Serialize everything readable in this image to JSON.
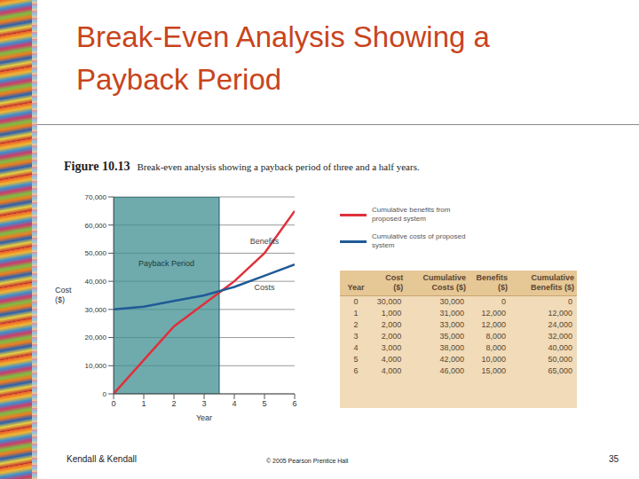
{
  "slide": {
    "title": "Break-Even Analysis Showing a Payback Period",
    "footer_left": "Kendall & Kendall",
    "footer_center": "© 2005 Pearson Prentice Hall",
    "page": "35"
  },
  "figure": {
    "label": "Figure 10.13",
    "caption": "Break-even analysis showing a payback period of three and a half years."
  },
  "chart_data": {
    "type": "line",
    "x": [
      0,
      1,
      2,
      3,
      4,
      5,
      6
    ],
    "series": [
      {
        "name": "Cumulative benefits from proposed system",
        "color": "#e0303c",
        "values": [
          0,
          12000,
          24000,
          32000,
          40000,
          50000,
          65000
        ]
      },
      {
        "name": "Cumulative costs of proposed system",
        "color": "#1f5a96",
        "values": [
          30000,
          31000,
          33000,
          35000,
          38000,
          42000,
          46000
        ]
      }
    ],
    "x_label": "Year",
    "y_label": "Cost ($)",
    "xlim": [
      0,
      6
    ],
    "xticks": [
      0,
      1,
      2,
      3,
      4,
      5,
      6
    ],
    "ylim": [
      0,
      70000
    ],
    "yticks": [
      0,
      {
        "value": 10000,
        "label": "10,000"
      },
      {
        "value": 20000,
        "label": "20,000"
      },
      {
        "value": 30000,
        "label": "30,000"
      },
      {
        "value": 40000,
        "label": "40,000"
      },
      {
        "value": 50000,
        "label": "50,000"
      },
      {
        "value": 60000,
        "label": "60,000"
      },
      {
        "value": 70000,
        "label": "70,000"
      }
    ],
    "grid": true,
    "payback_period": {
      "label": "Payback Period",
      "start": 0,
      "end": 3.5
    },
    "annotations": [
      {
        "text": "Benefits",
        "series": "Cumulative benefits from proposed system"
      },
      {
        "text": "Costs",
        "series": "Cumulative costs of proposed system"
      }
    ]
  },
  "table": {
    "header": [
      "Year",
      "Cost ($)",
      "Cumulative Costs ($)",
      "Benefits ($)",
      "Cumulative Benefits ($)"
    ],
    "rows": [
      [
        "0",
        "30,000",
        "30,000",
        "0",
        "0"
      ],
      [
        "1",
        "1,000",
        "31,000",
        "12,000",
        "12,000"
      ],
      [
        "2",
        "2,000",
        "33,000",
        "12,000",
        "24,000"
      ],
      [
        "3",
        "2,000",
        "35,000",
        "8,000",
        "32,000"
      ],
      [
        "4",
        "3,000",
        "38,000",
        "8,000",
        "40,000"
      ],
      [
        "5",
        "4,000",
        "42,000",
        "10,000",
        "50,000"
      ],
      [
        "6",
        "4,000",
        "46,000",
        "15,000",
        "65,000"
      ]
    ]
  }
}
